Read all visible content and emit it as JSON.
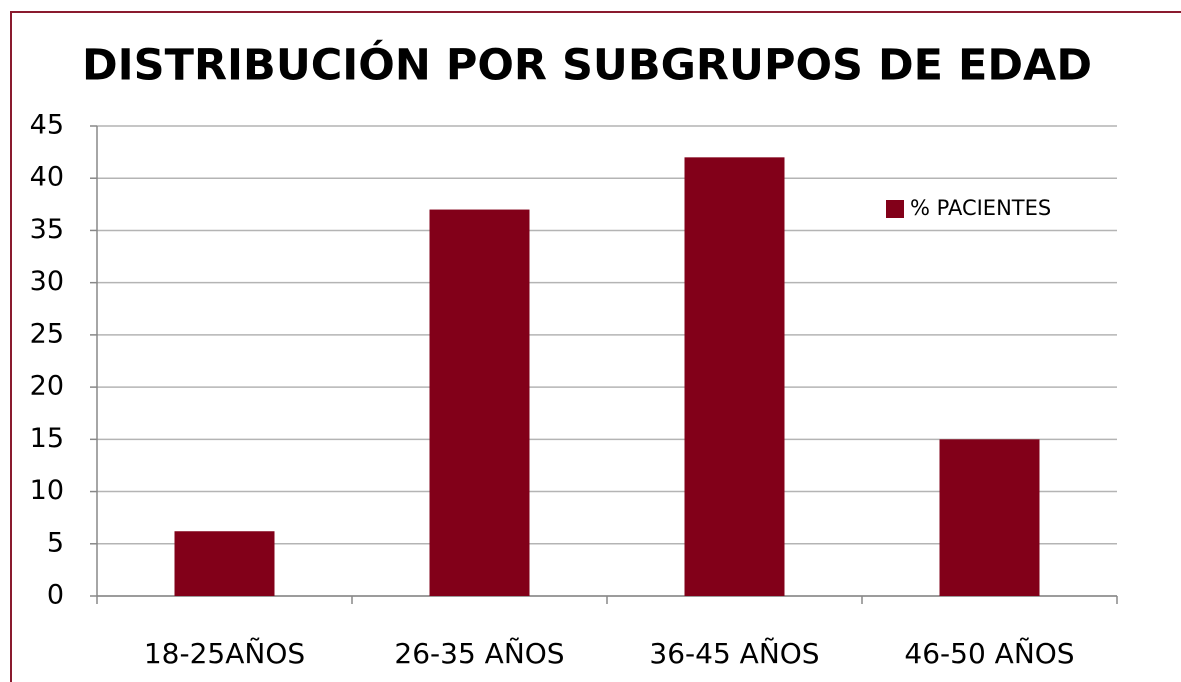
{
  "chart_data": {
    "type": "bar",
    "title": "DISTRIBUCIÓN POR SUBGRUPOS DE EDAD",
    "categories": [
      "18-25AÑOS",
      "26-35 AÑOS",
      "36-45 AÑOS",
      "46-50 AÑOS"
    ],
    "series": [
      {
        "name": "% PACIENTES",
        "color": "#820019",
        "values": [
          6.2,
          37,
          42,
          15
        ]
      }
    ],
    "ylim": [
      0,
      45
    ],
    "yticks": [
      0,
      5,
      10,
      15,
      20,
      25,
      30,
      35,
      40,
      45
    ],
    "grid": true,
    "legend": "upper right"
  }
}
